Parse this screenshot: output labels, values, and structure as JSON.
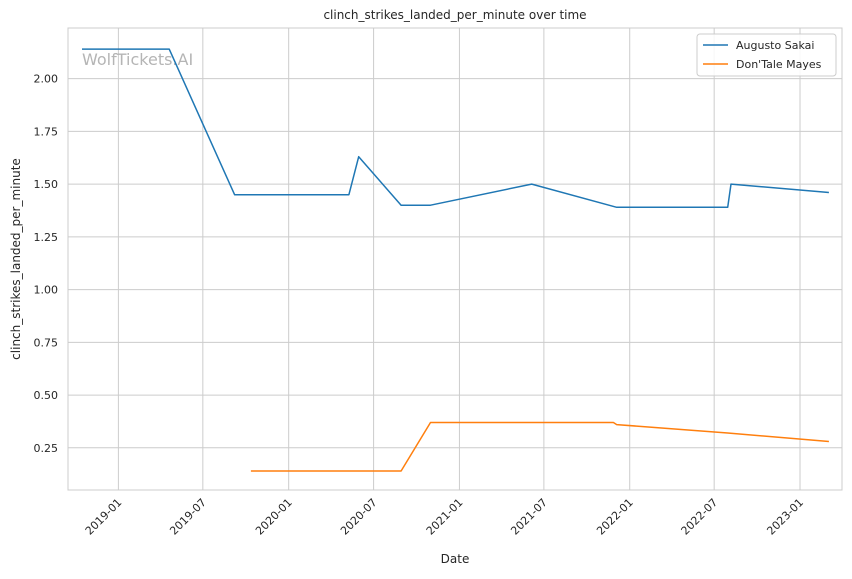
{
  "chart_data": {
    "type": "line",
    "title": "clinch_strikes_landed_per_minute over time",
    "xlabel": "Date",
    "ylabel": "clinch_strikes_landed_per_minute",
    "watermark": "WolfTickets.AI",
    "x_range": [
      "2018-09-15",
      "2023-04-01"
    ],
    "ylim": [
      0.05,
      2.24
    ],
    "x_ticks": [
      "2019-01",
      "2019-07",
      "2020-01",
      "2020-07",
      "2021-01",
      "2021-07",
      "2022-01",
      "2022-07",
      "2023-01"
    ],
    "y_ticks": [
      "0.25",
      "0.50",
      "0.75",
      "1.00",
      "1.25",
      "1.50",
      "1.75",
      "2.00"
    ],
    "legend_position": "top-right",
    "grid": true,
    "series": [
      {
        "name": "Augusto Sakai",
        "color": "#1f77b4",
        "points": [
          {
            "x": "2018-10-15",
            "y": 2.14
          },
          {
            "x": "2019-04-20",
            "y": 2.14
          },
          {
            "x": "2019-09-07",
            "y": 1.45
          },
          {
            "x": "2020-05-09",
            "y": 1.45
          },
          {
            "x": "2020-05-30",
            "y": 1.63
          },
          {
            "x": "2020-08-29",
            "y": 1.4
          },
          {
            "x": "2020-10-31",
            "y": 1.4
          },
          {
            "x": "2021-06-05",
            "y": 1.5
          },
          {
            "x": "2021-12-04",
            "y": 1.39
          },
          {
            "x": "2022-07-30",
            "y": 1.39
          },
          {
            "x": "2022-08-06",
            "y": 1.5
          },
          {
            "x": "2023-03-04",
            "y": 1.46
          }
        ]
      },
      {
        "name": "Don'Tale Mayes",
        "color": "#ff7f0e",
        "points": [
          {
            "x": "2019-10-12",
            "y": 0.14
          },
          {
            "x": "2020-08-29",
            "y": 0.14
          },
          {
            "x": "2020-10-31",
            "y": 0.37
          },
          {
            "x": "2021-11-27",
            "y": 0.37
          },
          {
            "x": "2021-12-04",
            "y": 0.36
          },
          {
            "x": "2022-07-30",
            "y": 0.32
          },
          {
            "x": "2023-03-04",
            "y": 0.28
          }
        ]
      }
    ]
  }
}
